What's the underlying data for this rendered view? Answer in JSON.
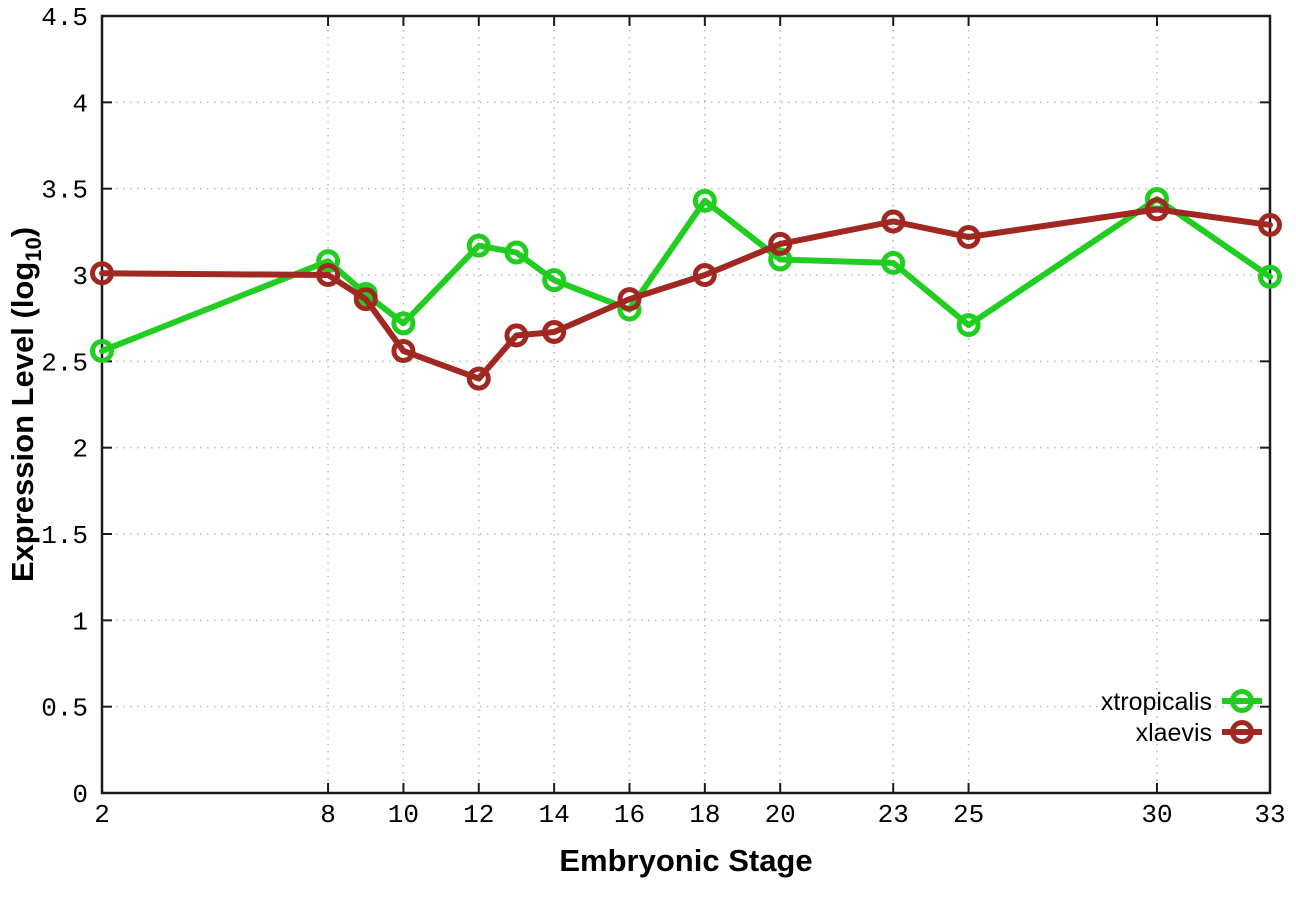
{
  "chart_data": {
    "type": "line",
    "title": "",
    "xlabel": "Embryonic Stage",
    "ylabel": {
      "prefix": "Expression Level (log",
      "subscript": "10",
      "suffix": ")"
    },
    "xlim": [
      2,
      33
    ],
    "ylim": [
      0,
      4.5
    ],
    "grid": true,
    "grid_style": "dotted",
    "legend_position": "bottom-right",
    "x_ticks": [
      2,
      8,
      10,
      12,
      14,
      16,
      18,
      20,
      23,
      25,
      30,
      33
    ],
    "x_tick_labels": [
      "2",
      "8",
      "10",
      "12",
      "14",
      "16",
      "18",
      "20",
      "23",
      "25",
      "30",
      "33"
    ],
    "y_ticks": [
      0,
      0.5,
      1,
      1.5,
      2,
      2.5,
      3,
      3.5,
      4,
      4.5
    ],
    "y_tick_labels": [
      "0",
      "0.5",
      "1",
      "1.5",
      "2",
      "2.5",
      "3",
      "3.5",
      "4",
      "4.5"
    ],
    "series": [
      {
        "name": "xtropicalis",
        "color": "#20cd20",
        "marker": "open-circle",
        "x": [
          2,
          8,
          9,
          10,
          12,
          13,
          14,
          16,
          18,
          20,
          23,
          25,
          30,
          33
        ],
        "y": [
          2.56,
          3.08,
          2.89,
          2.72,
          3.17,
          3.13,
          2.97,
          2.8,
          3.43,
          3.09,
          3.07,
          2.71,
          3.44,
          2.99
        ]
      },
      {
        "name": "xlaevis",
        "color": "#a02820",
        "marker": "open-circle",
        "x": [
          2,
          8,
          9,
          10,
          12,
          13,
          14,
          16,
          18,
          20,
          23,
          25,
          30,
          33
        ],
        "y": [
          3.01,
          3.0,
          2.86,
          2.56,
          2.4,
          2.65,
          2.67,
          2.86,
          3.0,
          3.18,
          3.31,
          3.22,
          3.38,
          3.29
        ]
      }
    ],
    "style_colors": {
      "grid": "#bbbbbb",
      "border": "#1a1a1a",
      "text": "#000000",
      "background": "#ffffff"
    }
  }
}
